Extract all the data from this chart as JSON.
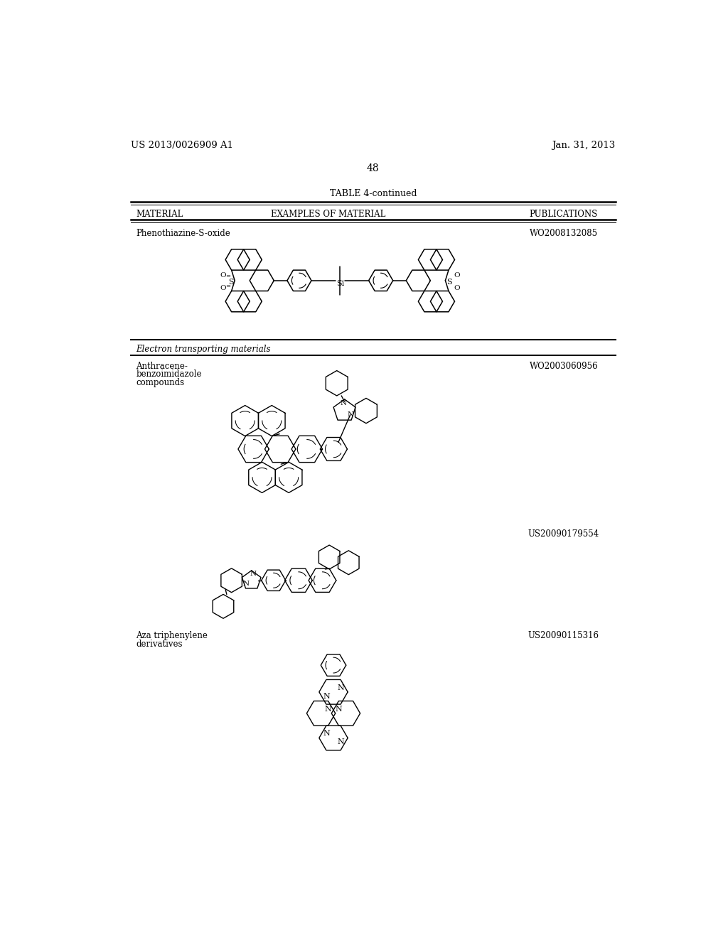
{
  "patent_number": "US 2013/0026909 A1",
  "patent_date": "Jan. 31, 2013",
  "page_number": "48",
  "table_title": "TABLE 4-continued",
  "col1_header": "MATERIAL",
  "col2_header": "EXAMPLES OF MATERIAL",
  "col3_header": "PUBLICATIONS",
  "row1_material": "Phenothiazine-S-oxide",
  "row1_pub": "WO2008132085",
  "section_header": "Electron transporting materials",
  "row3_mat1": "Anthracene-",
  "row3_mat2": "benzoimidazole",
  "row3_mat3": "compounds",
  "row3_pub": "WO2003060956",
  "row4_pub": "US20090179554",
  "row5_mat1": "Aza triphenylene",
  "row5_mat2": "derivatives",
  "row5_pub": "US20090115316",
  "bg_color": "#ffffff",
  "line_color": "#000000",
  "text_color": "#000000"
}
